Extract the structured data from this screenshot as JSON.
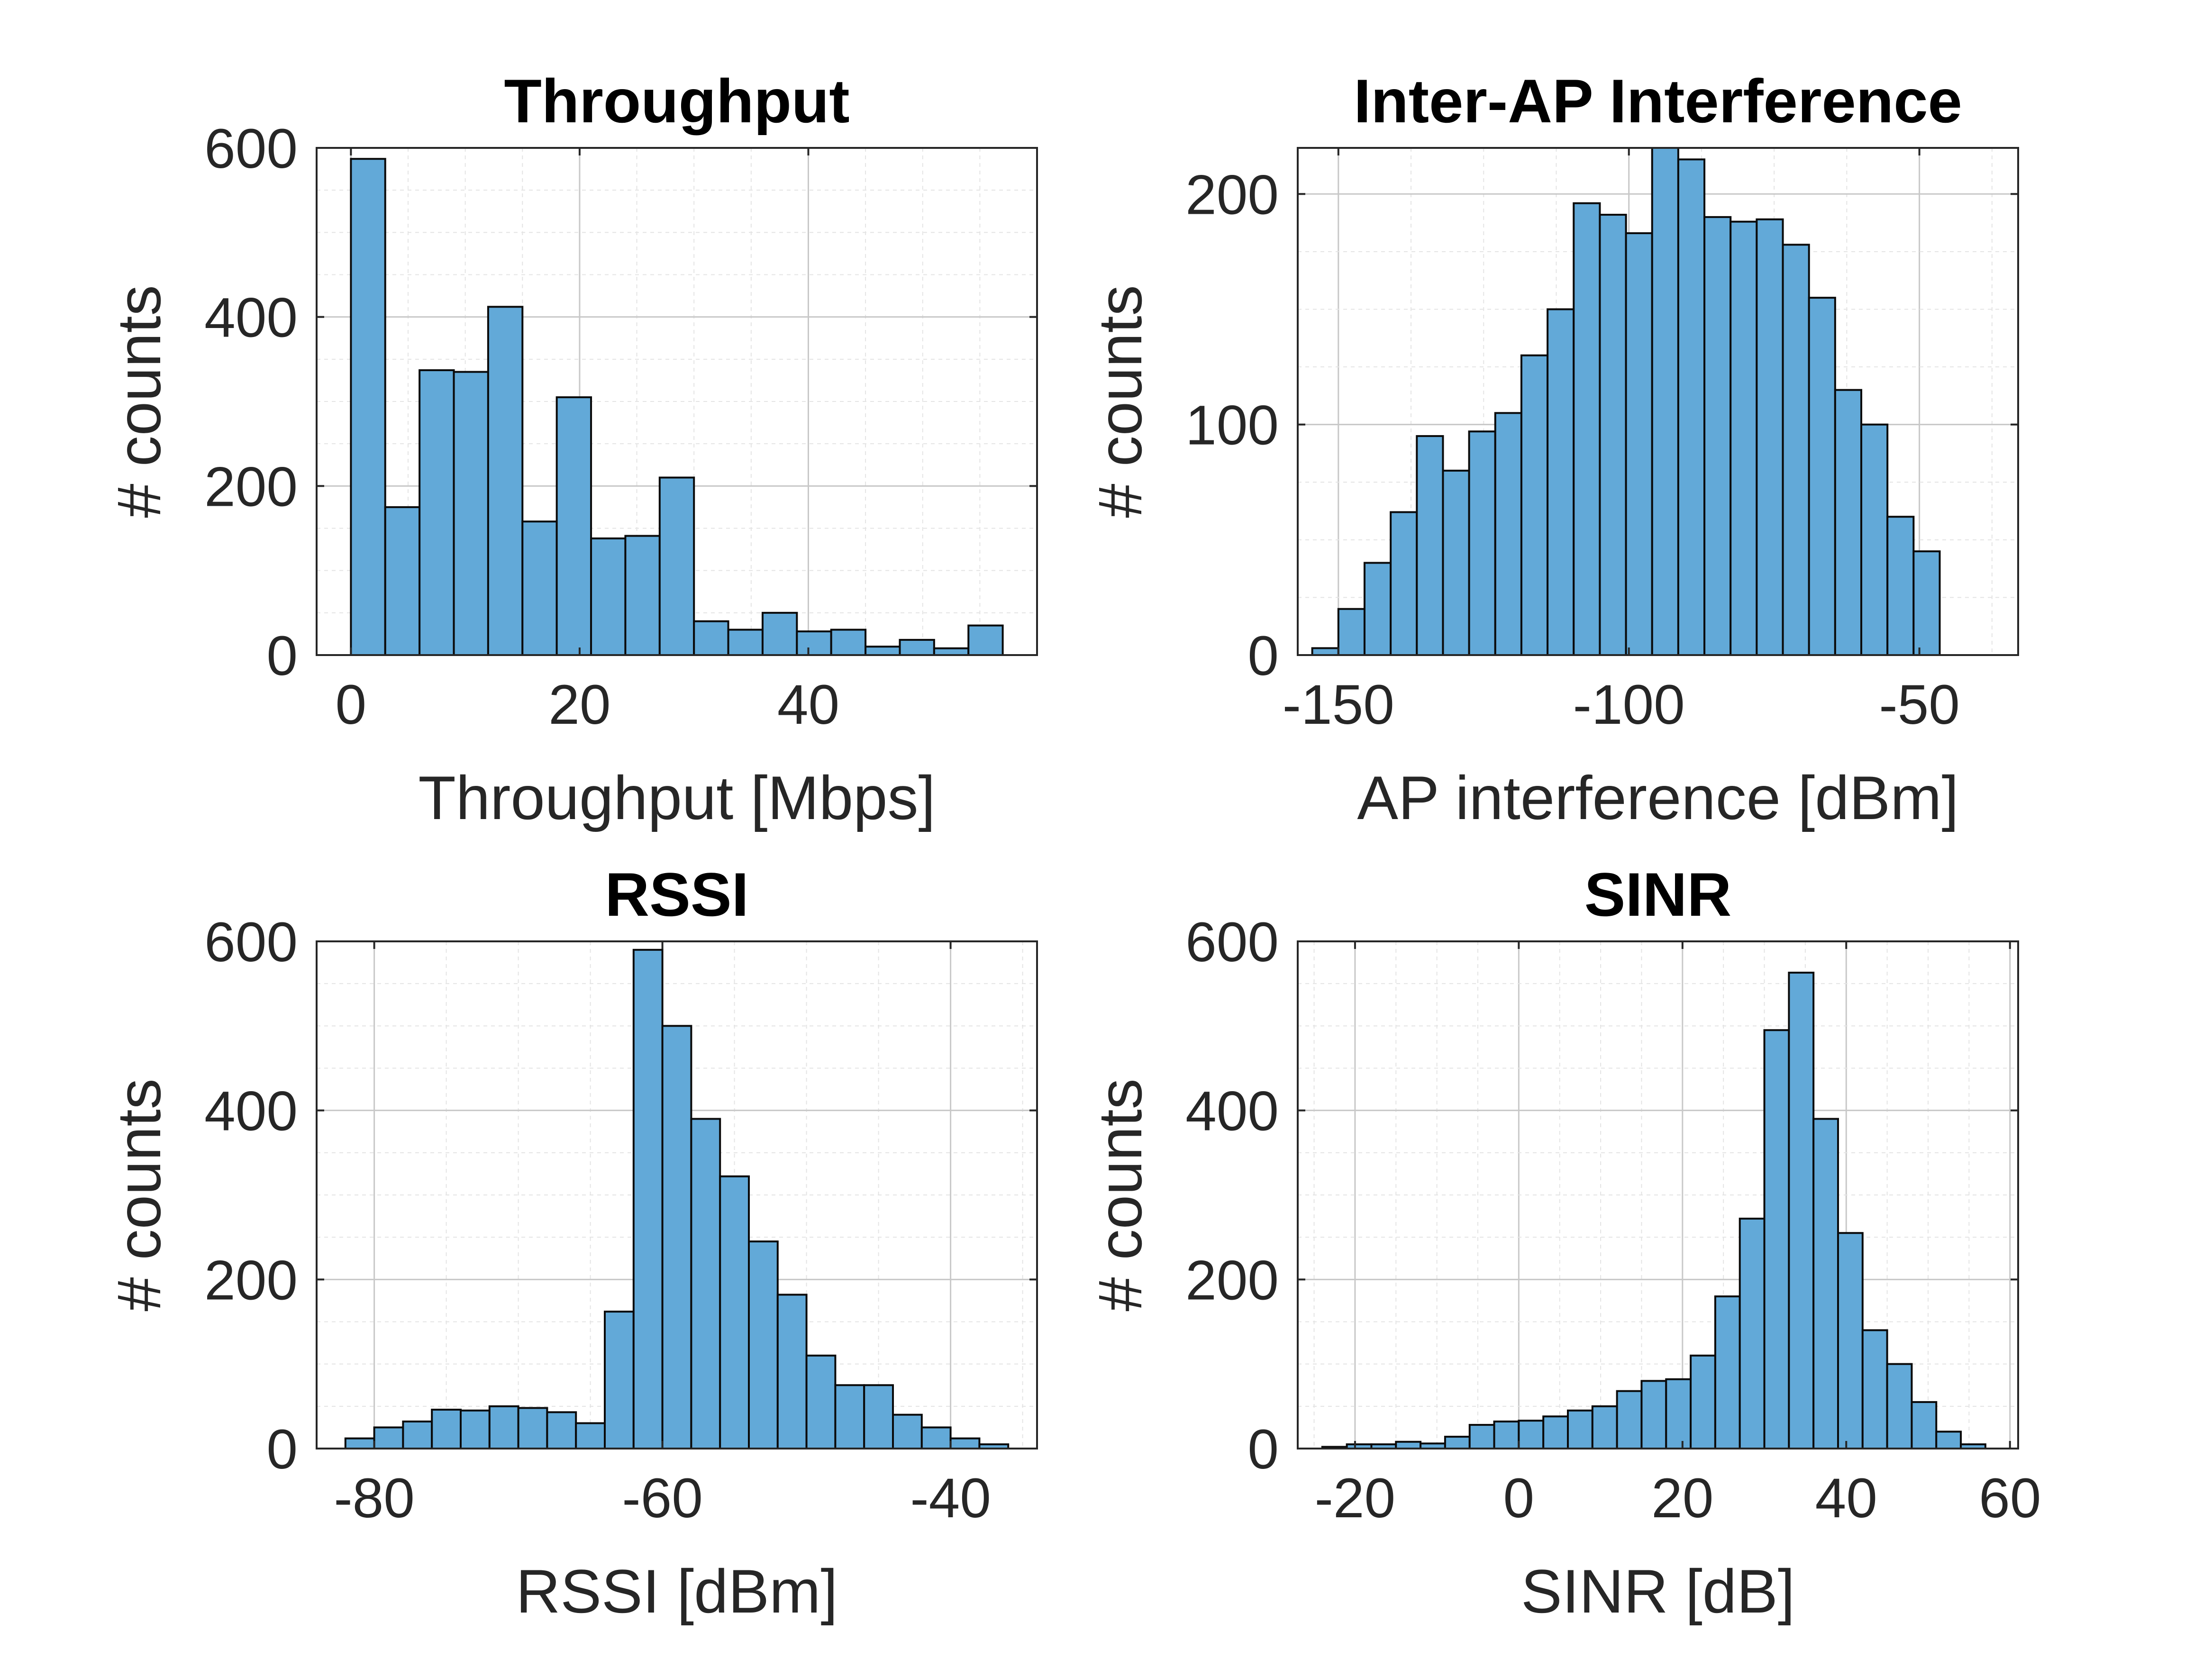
{
  "colors": {
    "bar_fill": "#62a9d8",
    "bar_edge": "#0a0a0a",
    "axis": "#262626",
    "grid_major": "#c8c8c8",
    "grid_minor": "#e4e4e4",
    "background": "#ffffff"
  },
  "chart_data": [
    {
      "type": "bar",
      "title": "Throughput",
      "xlabel": "Throughput [Mbps]",
      "ylabel": "# counts",
      "xlim": [
        -3,
        60
      ],
      "ylim": [
        0,
        600
      ],
      "xticks": [
        0,
        20,
        40
      ],
      "yticks": [
        0,
        200,
        400,
        600
      ],
      "grid": true,
      "bin_width": 3,
      "bin_start": 0,
      "values": [
        587,
        175,
        337,
        335,
        412,
        158,
        305,
        138,
        141,
        210,
        40,
        30,
        50,
        28,
        30,
        10,
        18,
        8,
        35
      ]
    },
    {
      "type": "bar",
      "title": "Inter-AP Interference",
      "xlabel": "AP interference [dBm]",
      "ylabel": "# counts",
      "xlim": [
        -157,
        -33
      ],
      "ylim": [
        0,
        220
      ],
      "xticks": [
        -150,
        -100,
        -50
      ],
      "yticks": [
        0,
        100,
        200
      ],
      "grid": true,
      "bin_width": 4.5,
      "bin_start": -154.5,
      "values": [
        3,
        20,
        40,
        62,
        95,
        80,
        97,
        105,
        130,
        150,
        196,
        191,
        183,
        225,
        215,
        190,
        188,
        189,
        178,
        155,
        115,
        100,
        60,
        45
      ]
    },
    {
      "type": "bar",
      "title": "RSSI",
      "xlabel": "RSSI [dBm]",
      "ylabel": "# counts",
      "xlim": [
        -84,
        -34
      ],
      "ylim": [
        0,
        600
      ],
      "xticks": [
        -80,
        -60,
        -40
      ],
      "yticks": [
        0,
        200,
        400,
        600
      ],
      "grid": true,
      "bin_width": 2,
      "bin_start": -82,
      "values": [
        12,
        25,
        32,
        46,
        45,
        50,
        48,
        43,
        30,
        162,
        590,
        500,
        390,
        322,
        245,
        182,
        110,
        75,
        75,
        40,
        25,
        12,
        5
      ]
    },
    {
      "type": "bar",
      "title": "SINR",
      "xlabel": "SINR [dB]",
      "ylabel": "# counts",
      "xlim": [
        -27,
        61
      ],
      "ylim": [
        0,
        600
      ],
      "xticks": [
        -20,
        0,
        20,
        40,
        60
      ],
      "yticks": [
        0,
        200,
        400,
        600
      ],
      "grid": true,
      "bin_width": 3,
      "bin_start": -24,
      "values": [
        2,
        5,
        5,
        8,
        6,
        14,
        28,
        32,
        33,
        38,
        45,
        50,
        68,
        80,
        82,
        110,
        180,
        272,
        495,
        563,
        390,
        255,
        140,
        100,
        55,
        20,
        5
      ]
    }
  ]
}
